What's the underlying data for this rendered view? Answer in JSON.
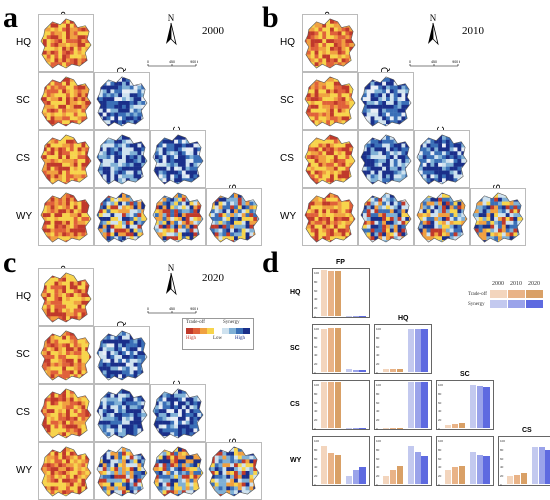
{
  "panels": {
    "a": {
      "letter": "a",
      "year": "2000"
    },
    "b": {
      "letter": "b",
      "year": "2010"
    },
    "c": {
      "letter": "c",
      "year": "2020"
    },
    "d": {
      "letter": "d"
    }
  },
  "services": [
    "FP",
    "HQ",
    "SC",
    "CS",
    "WY"
  ],
  "north_label": "N",
  "scale_labels": [
    "0",
    "450",
    "900 km"
  ],
  "map_legend": {
    "tradeoff": "Trade-off",
    "synergy": "Synergy",
    "high_left": "High",
    "low": "Low",
    "high_right": "High",
    "tradeoff_colors": [
      "#c0392b",
      "#e0613a",
      "#f0a040",
      "#f7d44c"
    ],
    "synergy_colors": [
      "#cfe2ef",
      "#7fb0d6",
      "#3a6fb7",
      "#1a2f8a"
    ]
  },
  "bar_legend": {
    "years": [
      "2000",
      "2010",
      "2020"
    ],
    "tradeoff": "Trade-off",
    "synergy": "Synergy",
    "tradeoff_colors": [
      "#f3d5bd",
      "#e9b387",
      "#d9a066"
    ],
    "synergy_colors": [
      "#c3c9ef",
      "#9aa3ea",
      "#5e6ae0"
    ]
  },
  "chart_data": {
    "type": "bar",
    "description_rows": [
      "HQ",
      "SC",
      "CS",
      "WY"
    ],
    "description_cols": [
      "FP",
      "HQ",
      "SC",
      "CS"
    ],
    "ylim": [
      0,
      100
    ],
    "y_ticks": [
      "0",
      "20",
      "40",
      "60",
      "80",
      "100"
    ],
    "cells": [
      {
        "row": "HQ",
        "col": "FP",
        "tradeoff": [
          99,
          98,
          98
        ],
        "synergy": [
          1,
          1,
          1
        ]
      },
      {
        "row": "SC",
        "col": "FP",
        "tradeoff": [
          93,
          95,
          96
        ],
        "synergy": [
          6,
          5,
          4
        ]
      },
      {
        "row": "SC",
        "col": "HQ",
        "tradeoff": [
          7,
          7,
          7
        ],
        "synergy": [
          93,
          94,
          94
        ]
      },
      {
        "row": "CS",
        "col": "FP",
        "tradeoff": [
          99,
          99,
          99
        ],
        "synergy": [
          1,
          1,
          1
        ]
      },
      {
        "row": "CS",
        "col": "HQ",
        "tradeoff": [
          1,
          1,
          1
        ],
        "synergy": [
          99,
          99,
          99
        ]
      },
      {
        "row": "CS",
        "col": "SC",
        "tradeoff": [
          7,
          8,
          10
        ],
        "synergy": [
          93,
          92,
          90
        ]
      },
      {
        "row": "WY",
        "col": "FP",
        "tradeoff": [
          82,
          68,
          62
        ],
        "synergy": [
          18,
          30,
          38
        ]
      },
      {
        "row": "WY",
        "col": "HQ",
        "tradeoff": [
          18,
          31,
          39
        ],
        "synergy": [
          82,
          69,
          61
        ]
      },
      {
        "row": "WY",
        "col": "SC",
        "tradeoff": [
          30,
          36,
          39
        ],
        "synergy": [
          70,
          64,
          61
        ]
      },
      {
        "row": "WY",
        "col": "CS",
        "tradeoff": [
          18,
          19,
          25
        ],
        "synergy": [
          80,
          81,
          75
        ]
      }
    ]
  }
}
